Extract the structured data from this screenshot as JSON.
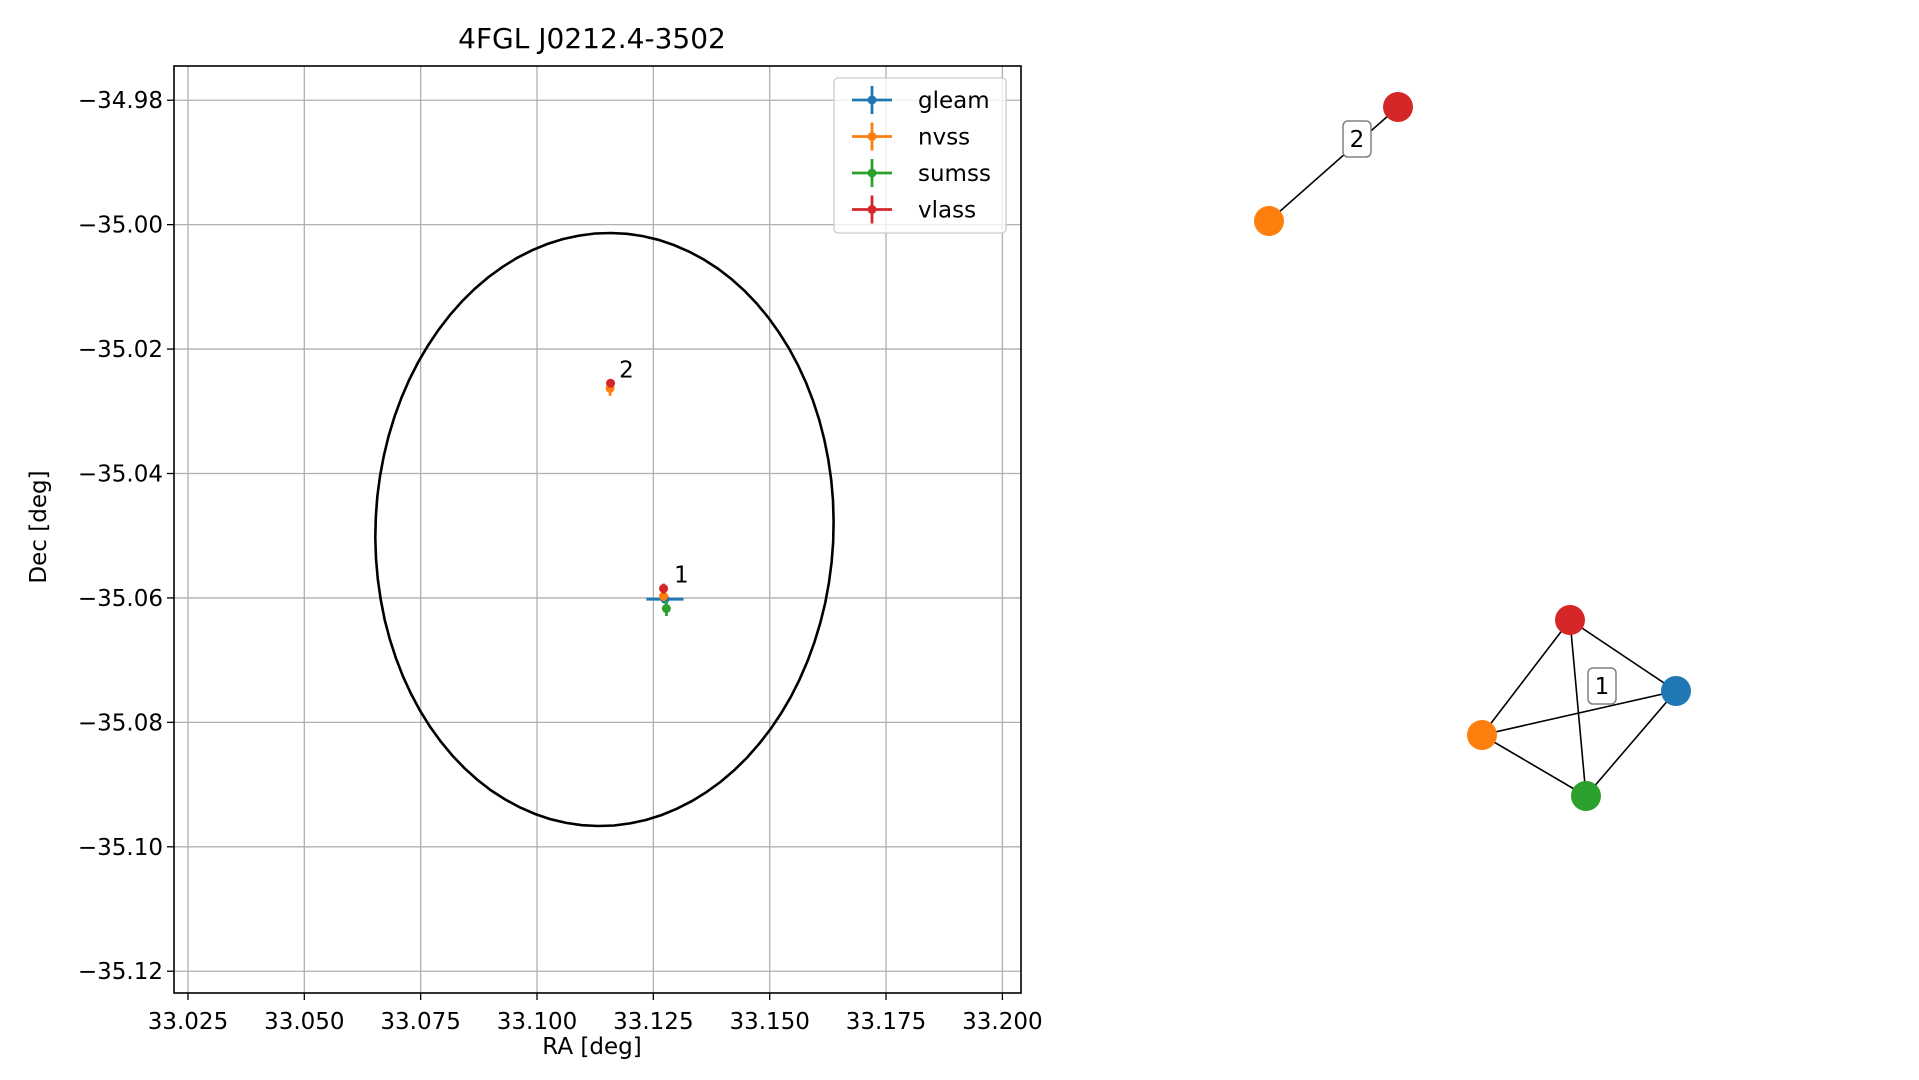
{
  "chart_data": [
    {
      "type": "scatter",
      "title": "4FGL J0212.4-3502",
      "xlabel": "RA [deg]",
      "ylabel": "Dec [deg]",
      "xlim": [
        33.022,
        33.204
      ],
      "ylim": [
        -35.1235,
        -34.9745
      ],
      "xticks": [
        33.025,
        33.05,
        33.075,
        33.1,
        33.125,
        33.15,
        33.175,
        33.2
      ],
      "xtick_labels": [
        "33.025",
        "33.050",
        "33.075",
        "33.100",
        "33.125",
        "33.150",
        "33.175",
        "33.200"
      ],
      "yticks": [
        -34.98,
        -35.0,
        -35.02,
        -35.04,
        -35.06,
        -35.08,
        -35.1,
        -35.12
      ],
      "ytick_labels": [
        "−34.98",
        "−35.00",
        "−35.02",
        "−35.04",
        "−35.06",
        "−35.08",
        "−35.10",
        "−35.12"
      ],
      "grid": true,
      "legend_position": "top-right",
      "series": [
        {
          "name": "gleam",
          "color": "#1f77b4",
          "points": [
            {
              "x": 33.1275,
              "y": -35.0602,
              "xerr": 0.004,
              "yerr": 0.0004
            }
          ]
        },
        {
          "name": "nvss",
          "color": "#ff7f0e",
          "points": [
            {
              "x": 33.1157,
              "y": -35.0263,
              "xerr": 0.0008,
              "yerr": 0.0012
            },
            {
              "x": 33.1272,
              "y": -35.0597,
              "xerr": 0.0007,
              "yerr": 0.0008
            }
          ]
        },
        {
          "name": "sumss",
          "color": "#2ca02c",
          "points": [
            {
              "x": 33.1278,
              "y": -35.0617,
              "xerr": 0.0005,
              "yerr": 0.0012
            }
          ]
        },
        {
          "name": "vlass",
          "color": "#d62728",
          "points": [
            {
              "x": 33.1158,
              "y": -35.0255,
              "xerr": 0.0002,
              "yerr": 0.0005
            },
            {
              "x": 33.1272,
              "y": -35.0585,
              "xerr": 0.0002,
              "yerr": 0.0008
            }
          ]
        }
      ],
      "ellipse": {
        "center_x": 33.1145,
        "center_y": -35.049,
        "ra_semi_axis": 0.0494,
        "dec_semi_axis": 0.0475,
        "angle_deg": 17,
        "color": "#000000"
      },
      "annotations": [
        {
          "text": "2",
          "x": 33.1157,
          "y": -35.0255
        },
        {
          "text": "1",
          "x": 33.1275,
          "y": -35.0585
        }
      ]
    },
    {
      "type": "graph",
      "clusters": [
        {
          "label": "2",
          "nodes": [
            {
              "name": "nvss",
              "color": "#ff7f0e"
            },
            {
              "name": "vlass",
              "color": "#d62728"
            }
          ],
          "edges": [
            [
              "nvss",
              "vlass"
            ]
          ]
        },
        {
          "label": "1",
          "nodes": [
            {
              "name": "vlass",
              "color": "#d62728"
            },
            {
              "name": "gleam",
              "color": "#1f77b4"
            },
            {
              "name": "nvss",
              "color": "#ff7f0e"
            },
            {
              "name": "sumss",
              "color": "#2ca02c"
            }
          ],
          "edges": [
            [
              "vlass",
              "gleam"
            ],
            [
              "vlass",
              "nvss"
            ],
            [
              "vlass",
              "sumss"
            ],
            [
              "nvss",
              "gleam"
            ],
            [
              "nvss",
              "sumss"
            ],
            [
              "sumss",
              "gleam"
            ]
          ]
        }
      ]
    }
  ]
}
